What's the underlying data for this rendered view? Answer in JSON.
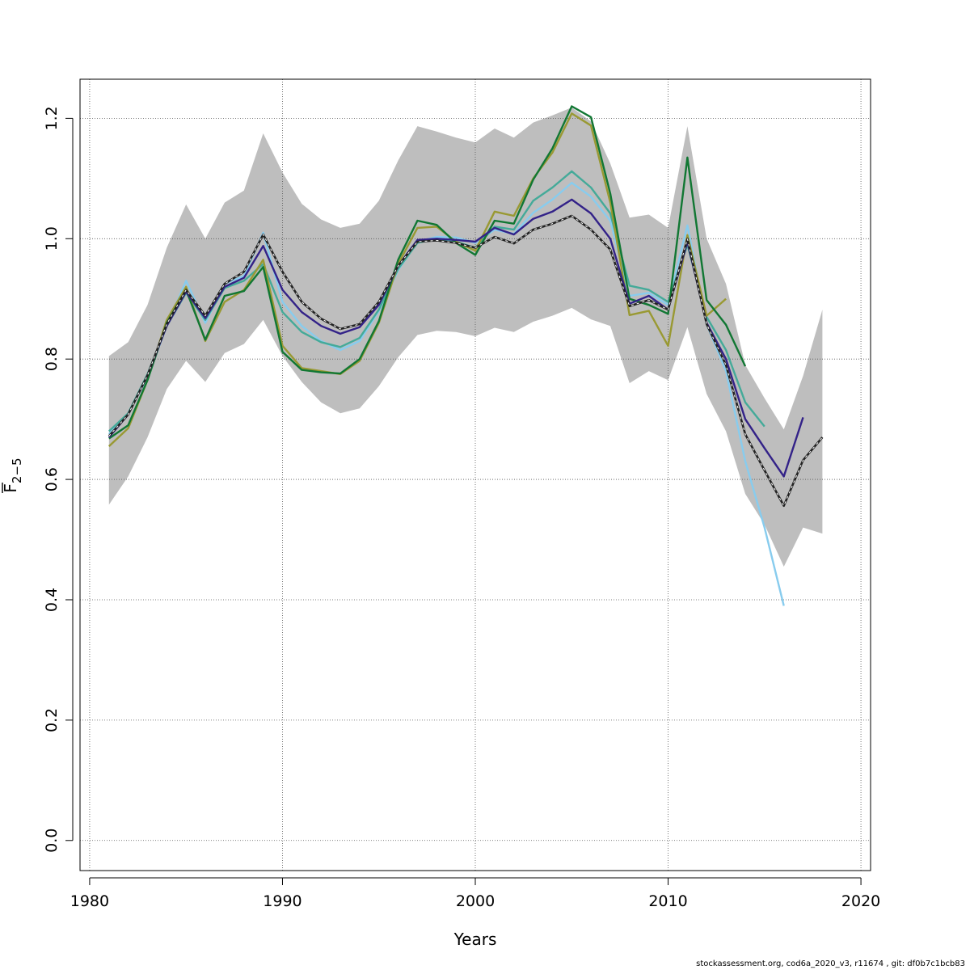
{
  "chart_data": {
    "type": "line",
    "xlabel": "Years",
    "ylabel_main": "F",
    "ylabel_sub": "2−5",
    "xlim": [
      1979.5,
      2020.5
    ],
    "ylim": [
      -0.05,
      1.265
    ],
    "x_ticks": [
      1980,
      1990,
      2000,
      2010,
      2020
    ],
    "y_ticks": [
      0.0,
      0.2,
      0.4,
      0.6,
      0.8,
      1.0,
      1.2
    ],
    "y_tick_labels": [
      "0.0",
      "0.2",
      "0.4",
      "0.6",
      "0.8",
      "1.0",
      "1.2"
    ],
    "grid": true,
    "band": {
      "color": "#bebebe",
      "x": [
        1981,
        1982,
        1983,
        1984,
        1985,
        1986,
        1987,
        1988,
        1989,
        1990,
        1991,
        1992,
        1993,
        1994,
        1995,
        1996,
        1997,
        1998,
        1999,
        2000,
        2001,
        2002,
        2003,
        2004,
        2005,
        2006,
        2007,
        2008,
        2009,
        2010,
        2011,
        2012,
        2013,
        2014,
        2015,
        2016,
        2017,
        2018
      ],
      "upper": [
        0.805,
        0.828,
        0.89,
        0.985,
        1.057,
        1.0,
        1.06,
        1.08,
        1.175,
        1.11,
        1.058,
        1.032,
        1.018,
        1.025,
        1.063,
        1.13,
        1.187,
        1.178,
        1.168,
        1.16,
        1.183,
        1.168,
        1.193,
        1.205,
        1.218,
        1.195,
        1.125,
        1.035,
        1.04,
        1.018,
        1.187,
        1.0,
        0.925,
        0.79,
        0.735,
        0.683,
        0.772,
        0.882
      ],
      "lower": [
        0.558,
        0.605,
        0.67,
        0.75,
        0.797,
        0.762,
        0.81,
        0.825,
        0.865,
        0.805,
        0.762,
        0.728,
        0.71,
        0.718,
        0.755,
        0.803,
        0.84,
        0.847,
        0.845,
        0.838,
        0.852,
        0.845,
        0.862,
        0.872,
        0.885,
        0.866,
        0.855,
        0.76,
        0.78,
        0.765,
        0.853,
        0.742,
        0.68,
        0.576,
        0.525,
        0.455,
        0.52,
        0.51
      ]
    },
    "series": [
      {
        "color": "#88ccee",
        "dash": false,
        "x": [
          1981,
          1982,
          1983,
          1984,
          1985,
          1986,
          1987,
          1988,
          1989,
          1990,
          1991,
          1992,
          1993,
          1994,
          1995,
          1996,
          1997,
          1998,
          1999,
          2000,
          2001,
          2002,
          2003,
          2004,
          2005,
          2006,
          2007,
          2008,
          2009,
          2010,
          2011,
          2012,
          2013,
          2014,
          2015,
          2016
        ],
        "y": [
          0.675,
          0.71,
          0.77,
          0.855,
          0.93,
          0.86,
          0.925,
          0.938,
          1.01,
          0.895,
          0.855,
          0.83,
          0.815,
          0.83,
          0.88,
          0.948,
          0.995,
          1.003,
          1.002,
          0.993,
          1.015,
          1.008,
          1.043,
          1.065,
          1.093,
          1.07,
          1.03,
          0.905,
          0.91,
          0.89,
          1.022,
          0.858,
          0.78,
          0.63,
          0.52,
          0.39
        ]
      },
      {
        "color": "#44aa99",
        "dash": false,
        "x": [
          1981,
          1982,
          1983,
          1984,
          1985,
          1986,
          1987,
          1988,
          1989,
          1990,
          1991,
          1992,
          1993,
          1994,
          1995,
          1996,
          1997,
          1998,
          1999,
          2000,
          2001,
          2002,
          2003,
          2004,
          2005,
          2006,
          2007,
          2008,
          2009,
          2010,
          2011,
          2012,
          2013,
          2014,
          2015
        ],
        "y": [
          0.68,
          0.71,
          0.775,
          0.855,
          0.91,
          0.865,
          0.918,
          0.93,
          0.958,
          0.878,
          0.845,
          0.828,
          0.82,
          0.835,
          0.882,
          0.95,
          0.993,
          1.0,
          0.995,
          0.985,
          1.02,
          1.015,
          1.063,
          1.085,
          1.112,
          1.085,
          1.042,
          0.922,
          0.915,
          0.895,
          0.99,
          0.87,
          0.815,
          0.728,
          0.688
        ]
      },
      {
        "color": "#999933",
        "dash": false,
        "x": [
          1981,
          1982,
          1983,
          1984,
          1985,
          1986,
          1987,
          1988,
          1989,
          1990,
          1991,
          1992,
          1993,
          1994,
          1995,
          1996,
          1997,
          1998,
          1999,
          2000,
          2001,
          2002,
          2003,
          2004,
          2005,
          2006,
          2007,
          2008,
          2009,
          2010,
          2011,
          2012,
          2013
        ],
        "y": [
          0.655,
          0.685,
          0.765,
          0.865,
          0.92,
          0.83,
          0.895,
          0.915,
          0.965,
          0.822,
          0.785,
          0.78,
          0.775,
          0.797,
          0.86,
          0.958,
          1.018,
          1.02,
          0.995,
          0.98,
          1.045,
          1.038,
          1.1,
          1.143,
          1.208,
          1.188,
          1.06,
          0.873,
          0.88,
          0.822,
          1.006,
          0.872,
          0.9
        ]
      },
      {
        "color": "#117733",
        "dash": false,
        "x": [
          1981,
          1982,
          1983,
          1984,
          1985,
          1986,
          1987,
          1988,
          1989,
          1990,
          1991,
          1992,
          1993,
          1994,
          1995,
          1996,
          1997,
          1998,
          1999,
          2000,
          2001,
          2002,
          2003,
          2004,
          2005,
          2006,
          2007,
          2008,
          2009,
          2010,
          2011,
          2012,
          2013,
          2014
        ],
        "y": [
          0.668,
          0.69,
          0.765,
          0.86,
          0.915,
          0.832,
          0.905,
          0.913,
          0.953,
          0.812,
          0.782,
          0.778,
          0.776,
          0.8,
          0.863,
          0.965,
          1.03,
          1.023,
          0.993,
          0.973,
          1.03,
          1.025,
          1.098,
          1.15,
          1.22,
          1.202,
          1.075,
          0.9,
          0.89,
          0.875,
          1.135,
          0.898,
          0.857,
          0.788
        ]
      },
      {
        "color": "#332288",
        "dash": false,
        "x": [
          1981,
          1982,
          1983,
          1984,
          1985,
          1986,
          1987,
          1988,
          1989,
          1990,
          1991,
          1992,
          1993,
          1994,
          1995,
          1996,
          1997,
          1998,
          1999,
          2000,
          2001,
          2002,
          2003,
          2004,
          2005,
          2006,
          2007,
          2008,
          2009,
          2010,
          2011,
          2012,
          2013,
          2014,
          2015,
          2016,
          2017
        ],
        "y": [
          0.67,
          0.708,
          0.773,
          0.855,
          0.912,
          0.868,
          0.92,
          0.935,
          0.988,
          0.915,
          0.878,
          0.855,
          0.842,
          0.853,
          0.89,
          0.955,
          0.998,
          1.0,
          0.998,
          0.995,
          1.018,
          1.007,
          1.033,
          1.045,
          1.065,
          1.042,
          1.0,
          0.892,
          0.905,
          0.882,
          0.995,
          0.86,
          0.8,
          0.7,
          0.652,
          0.605,
          0.703
        ]
      },
      {
        "color": "#222222",
        "dash": true,
        "x": [
          1981,
          1982,
          1983,
          1984,
          1985,
          1986,
          1987,
          1988,
          1989,
          1990,
          1991,
          1992,
          1993,
          1994,
          1995,
          1996,
          1997,
          1998,
          1999,
          2000,
          2001,
          2002,
          2003,
          2004,
          2005,
          2006,
          2007,
          2008,
          2009,
          2010,
          2011,
          2012,
          2013,
          2014,
          2015,
          2016,
          2017,
          2018
        ],
        "y": [
          0.672,
          0.708,
          0.773,
          0.858,
          0.915,
          0.872,
          0.925,
          0.945,
          1.007,
          0.945,
          0.895,
          0.867,
          0.85,
          0.858,
          0.895,
          0.955,
          0.995,
          0.997,
          0.993,
          0.985,
          1.003,
          0.992,
          1.015,
          1.025,
          1.038,
          1.015,
          0.982,
          0.888,
          0.898,
          0.882,
          1.0,
          0.858,
          0.79,
          0.675,
          0.615,
          0.556,
          0.632,
          0.67
        ]
      }
    ]
  },
  "footer": "stockassessment.org, cod6a_2020_v3, r11674 , git: df0b7c1bcb83"
}
